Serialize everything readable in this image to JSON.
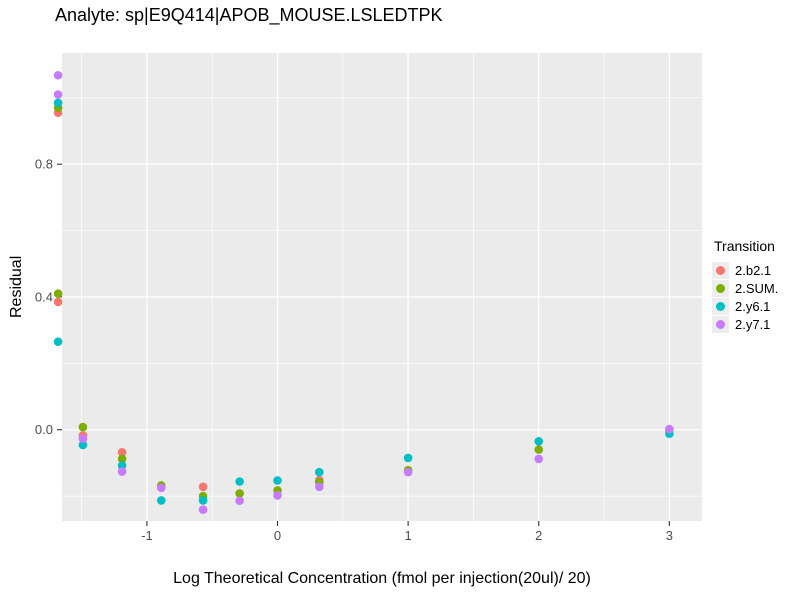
{
  "chart_data": {
    "type": "scatter",
    "title": "Analyte: sp|E9Q414|APOB_MOUSE.LSLEDTPK",
    "xlabel": "Log Theoretical Concentration (fmol per injection(20ul)/ 20)",
    "ylabel": "Residual",
    "legend": {
      "title": "Transition",
      "position": "right"
    },
    "panel_background": "#EBEBEB",
    "grid_color": "#FFFFFF",
    "tick_color": "#333333",
    "tick_label_color": "#4D4D4D",
    "grid": true,
    "xlim": [
      -1.65,
      3.25
    ],
    "ylim": [
      -0.275,
      1.135
    ],
    "x_major_ticks": [
      -1,
      0,
      1,
      2,
      3
    ],
    "x_tick_labels": [
      "-1",
      "0",
      "1",
      "2",
      "3"
    ],
    "x_minor_ticks": [
      -1.5,
      -0.5,
      0.5,
      1.5,
      2.5
    ],
    "y_major_ticks": [
      0,
      0.4,
      0.8
    ],
    "y_tick_labels": [
      "0.0",
      "0.4",
      "0.8"
    ],
    "y_minor_ticks": [
      -0.2,
      0.2,
      0.6,
      1.0
    ],
    "point_radius": 4.3,
    "series": [
      {
        "name": "2.b2.1",
        "color": "#F8766D",
        "points": [
          [
            -1.68,
            0.955
          ],
          [
            -1.68,
            0.385
          ],
          [
            -1.49,
            -0.017
          ],
          [
            -1.19,
            -0.068
          ],
          [
            -0.57,
            -0.172
          ],
          [
            0.32,
            -0.152
          ]
        ]
      },
      {
        "name": "2.SUM.",
        "color": "#7CAE00",
        "points": [
          [
            -1.68,
            0.97
          ],
          [
            -1.68,
            0.41
          ],
          [
            -1.49,
            0.008
          ],
          [
            -1.19,
            -0.088
          ],
          [
            -0.89,
            -0.168
          ],
          [
            -0.57,
            -0.2
          ],
          [
            -0.29,
            -0.192
          ],
          [
            0.0,
            -0.183
          ],
          [
            0.32,
            -0.158
          ],
          [
            1.0,
            -0.122
          ],
          [
            2.0,
            -0.06
          ],
          [
            3.0,
            0.0
          ]
        ]
      },
      {
        "name": "2.y6.1",
        "color": "#00BFC4",
        "points": [
          [
            -1.68,
            0.985
          ],
          [
            -1.68,
            0.265
          ],
          [
            -1.49,
            -0.046
          ],
          [
            -1.19,
            -0.108
          ],
          [
            -0.89,
            -0.213
          ],
          [
            -0.57,
            -0.213
          ],
          [
            -0.29,
            -0.156
          ],
          [
            0.0,
            -0.153
          ],
          [
            0.32,
            -0.128
          ],
          [
            1.0,
            -0.085
          ],
          [
            2.0,
            -0.035
          ],
          [
            3.0,
            -0.012
          ]
        ]
      },
      {
        "name": "2.y7.1",
        "color": "#C77CFF",
        "points": [
          [
            -1.68,
            1.068
          ],
          [
            -1.68,
            1.01
          ],
          [
            -1.49,
            -0.027
          ],
          [
            -1.19,
            -0.126
          ],
          [
            -0.89,
            -0.175
          ],
          [
            -0.57,
            -0.241
          ],
          [
            -0.29,
            -0.214
          ],
          [
            0.0,
            -0.198
          ],
          [
            0.32,
            -0.172
          ],
          [
            1.0,
            -0.128
          ],
          [
            2.0,
            -0.088
          ],
          [
            3.0,
            0.002
          ]
        ]
      }
    ]
  }
}
